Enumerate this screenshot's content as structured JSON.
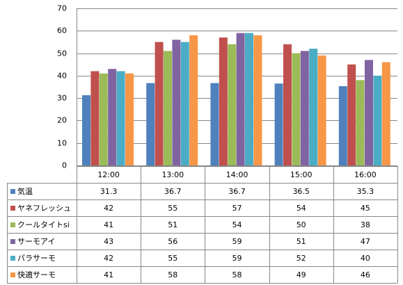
{
  "chart_data": {
    "type": "bar",
    "categories": [
      "12:00",
      "13:00",
      "14:00",
      "15:00",
      "16:00"
    ],
    "ylim": [
      0,
      70
    ],
    "yticks": [
      0,
      10,
      20,
      30,
      40,
      50,
      60,
      70
    ],
    "grid": true,
    "legend_placement": "data-table-left",
    "series": [
      {
        "name": "気温",
        "color": "#4F81BD",
        "values": [
          31.3,
          36.7,
          36.7,
          36.5,
          35.3
        ],
        "labels": [
          "31.3",
          "36.7",
          "36.7",
          "36.5",
          "35.3"
        ]
      },
      {
        "name": "ヤネフレッシュ",
        "color": "#C0504D",
        "values": [
          42,
          55,
          57,
          54,
          45
        ],
        "labels": [
          "42",
          "55",
          "57",
          "54",
          "45"
        ]
      },
      {
        "name": "クールタイトsi",
        "color": "#9BBB59",
        "values": [
          41,
          51,
          54,
          50,
          38
        ],
        "labels": [
          "41",
          "51",
          "54",
          "50",
          "38"
        ]
      },
      {
        "name": "サーモアイ",
        "color": "#8064A2",
        "values": [
          43,
          56,
          59,
          51,
          47
        ],
        "labels": [
          "43",
          "56",
          "59",
          "51",
          "47"
        ]
      },
      {
        "name": "パラサーモ",
        "color": "#4BACC6",
        "values": [
          42,
          55,
          59,
          52,
          40
        ],
        "labels": [
          "42",
          "55",
          "59",
          "52",
          "40"
        ]
      },
      {
        "name": "快適サーモ",
        "color": "#F79646",
        "values": [
          41,
          58,
          58,
          49,
          46
        ],
        "labels": [
          "41",
          "58",
          "58",
          "49",
          "46"
        ]
      }
    ]
  }
}
